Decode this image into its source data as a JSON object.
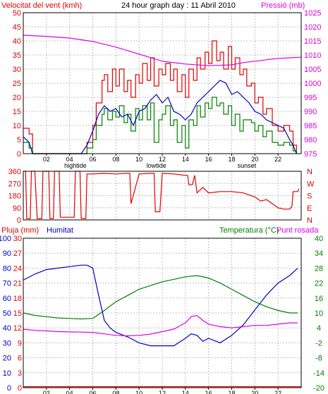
{
  "colors": {
    "red": "#e00000",
    "green": "#008000",
    "blue": "#0000c0",
    "magenta": "#e000e0",
    "grid": "#c0c0c0",
    "frame": "#000000"
  },
  "chart_data": [
    {
      "type": "line",
      "title": "24 hour graph day : 11 Abril 2010",
      "left_axis_label": "Velocitat del vent (kmh)",
      "right_axis_label": "Pressió (mb)",
      "x_ticks": [
        "02",
        "04",
        "06",
        "08",
        "10",
        "12",
        "14",
        "16",
        "18",
        "20",
        "22"
      ],
      "x_annotations": [
        {
          "label": "hightide",
          "hour": 4.5
        },
        {
          "label": "lowtide",
          "hour": 11.5
        },
        {
          "label": "sunset",
          "hour": 19.3
        }
      ],
      "left_ticks": [
        0,
        5,
        10,
        15,
        20,
        25,
        30,
        35,
        40,
        45,
        50
      ],
      "left_ylim": [
        0,
        50
      ],
      "right_ticks": [
        975,
        980,
        985,
        990,
        995,
        1000,
        1005,
        1010,
        1015,
        1020,
        1025
      ],
      "right_ylim": [
        975,
        1025
      ],
      "x_range": [
        0,
        24
      ],
      "grid": true,
      "series": [
        {
          "axis": "left",
          "color_key": "red",
          "hours": [
            0,
            0.5,
            0.8,
            1,
            2,
            3,
            4,
            5,
            5.5,
            6,
            6.3,
            6.8,
            7,
            7.3,
            7.7,
            8,
            8.3,
            8.7,
            9,
            9.3,
            9.7,
            10,
            10.3,
            10.7,
            11,
            11.3,
            11.7,
            12,
            12.3,
            12.7,
            13,
            13.3,
            13.7,
            14,
            14.3,
            14.7,
            15,
            15.3,
            15.7,
            16,
            16.3,
            16.7,
            17,
            17.3,
            17.7,
            18,
            18.3,
            18.7,
            19,
            19.3,
            19.7,
            20,
            20.3,
            20.7,
            21,
            21.5,
            22,
            22.5,
            23,
            23.3,
            23.6
          ],
          "values": [
            9,
            7,
            0,
            0,
            0,
            0,
            0,
            0,
            4,
            10,
            18,
            26,
            28,
            22,
            30,
            24,
            30,
            22,
            26,
            20,
            28,
            25,
            32,
            26,
            34,
            24,
            30,
            28,
            32,
            26,
            30,
            22,
            28,
            20,
            30,
            26,
            34,
            30,
            36,
            32,
            40,
            33,
            36,
            30,
            38,
            30,
            34,
            28,
            30,
            24,
            25,
            18,
            20,
            14,
            16,
            10,
            8,
            10,
            8,
            3,
            0
          ]
        },
        {
          "axis": "left",
          "color_key": "green",
          "hours": [
            0,
            0.5,
            0.8,
            1,
            2,
            3,
            4,
            5,
            5.5,
            6,
            6.3,
            6.8,
            7,
            7.3,
            7.7,
            8,
            8.3,
            8.7,
            9,
            9.3,
            9.7,
            10,
            10.3,
            10.7,
            11,
            11.3,
            11.7,
            12,
            12.3,
            12.7,
            13,
            13.3,
            13.7,
            14,
            14.3,
            14.7,
            15,
            15.3,
            15.7,
            16,
            16.3,
            16.7,
            17,
            17.3,
            17.7,
            18,
            18.3,
            18.7,
            19,
            19.3,
            19.7,
            20,
            20.3,
            20.7,
            21,
            21.5,
            22,
            22.5,
            23,
            23.3,
            23.6
          ],
          "values": [
            4,
            2,
            0,
            0,
            0,
            0,
            0,
            0,
            2,
            5,
            10,
            14,
            16,
            12,
            15,
            13,
            17,
            11,
            14,
            8,
            16,
            12,
            17,
            12,
            18,
            4,
            12,
            14,
            17,
            10,
            12,
            4,
            10,
            2,
            12,
            10,
            17,
            13,
            18,
            16,
            20,
            17,
            18,
            14,
            17,
            10,
            14,
            8,
            12,
            12,
            11,
            8,
            10,
            6,
            8,
            4,
            3,
            4,
            3,
            1,
            0
          ]
        },
        {
          "axis": "left",
          "color_key": "blue",
          "hours": [
            0,
            0.5,
            0.8,
            1,
            2,
            3,
            4,
            5,
            5.5,
            6,
            6.5,
            7,
            7.5,
            8,
            8.5,
            9,
            9.5,
            10,
            10.5,
            11,
            11.5,
            12,
            12.5,
            13,
            13.5,
            14,
            14.5,
            15,
            15.5,
            16,
            16.5,
            17,
            17.5,
            18,
            18.5,
            19,
            19.5,
            20,
            20.5,
            21,
            21.5,
            22,
            22.5,
            23,
            23.3,
            23.6
          ],
          "values": [
            6,
            4,
            0,
            0,
            0,
            0,
            0,
            0,
            3,
            8,
            14,
            17,
            15,
            16,
            13,
            14,
            10,
            15,
            16,
            19,
            21,
            18,
            20,
            15,
            14,
            12,
            14,
            18,
            20,
            22,
            24,
            26,
            25,
            21,
            22,
            20,
            18,
            15,
            14,
            12,
            11,
            10,
            9,
            5,
            3,
            0
          ]
        },
        {
          "axis": "right",
          "color_key": "magenta",
          "hours": [
            0,
            2,
            4,
            6,
            8,
            10,
            12,
            14,
            16,
            18,
            19,
            20,
            21,
            22,
            23,
            24
          ],
          "values": [
            1017,
            1016.6,
            1016,
            1014.8,
            1012.8,
            1010.3,
            1007.8,
            1006.8,
            1006.2,
            1006.5,
            1007.3,
            1007.8,
            1008.3,
            1008.8,
            1009,
            1009.2
          ]
        }
      ]
    },
    {
      "type": "line",
      "title": "",
      "ylabel_ticks": [
        0,
        90,
        180,
        270,
        360
      ],
      "right_labels": [
        "N",
        "W",
        "S",
        "E",
        "N"
      ],
      "ylim": [
        0,
        360
      ],
      "x_range": [
        0,
        24
      ],
      "grid": true,
      "series": [
        {
          "color_key": "red",
          "hours": [
            0,
            0.2,
            0.3,
            0.6,
            0.7,
            1,
            1.2,
            1.6,
            1.7,
            2.2,
            2.3,
            2.6,
            2.7,
            3.1,
            3.2,
            4.4,
            4.5,
            4.9,
            5,
            5.4,
            5.5,
            6,
            7,
            8,
            9,
            9.2,
            9.3,
            10,
            11,
            11.3,
            11.4,
            11.8,
            12,
            13,
            14,
            14.2,
            14.3,
            14.6,
            14.8,
            15,
            15.5,
            16,
            17,
            18,
            19,
            20,
            20.5,
            21,
            21.5,
            22,
            22.5,
            23,
            23.2,
            23.3,
            23.7,
            23.8
          ],
          "values": [
            360,
            360,
            10,
            10,
            360,
            360,
            10,
            10,
            360,
            360,
            10,
            10,
            360,
            360,
            20,
            20,
            360,
            360,
            10,
            10,
            340,
            340,
            345,
            340,
            345,
            345,
            120,
            340,
            345,
            345,
            60,
            60,
            345,
            340,
            330,
            330,
            260,
            260,
            330,
            200,
            240,
            200,
            210,
            210,
            200,
            170,
            140,
            150,
            120,
            90,
            80,
            80,
            100,
            210,
            210,
            230
          ]
        }
      ]
    },
    {
      "type": "line",
      "title": "",
      "left_axis_label_1": "Pluja (mm)",
      "left_axis_label_2": "Humitat",
      "right_axis_label_1": "Temperatura (°C)",
      "right_axis_label_2": "Punt rosada",
      "rain_ticks": [
        0,
        3,
        6,
        9,
        12,
        15,
        18,
        21,
        24,
        27,
        30
      ],
      "humidity_ticks": [
        0,
        10,
        20,
        30,
        40,
        50,
        60,
        70,
        80,
        90,
        100
      ],
      "temp_ticks": [
        -20,
        -14,
        -8,
        -2,
        4,
        10,
        16,
        22,
        28,
        34,
        40
      ],
      "rain_ylim": [
        0,
        30
      ],
      "humidity_ylim": [
        0,
        100
      ],
      "temp_ylim": [
        -20,
        40
      ],
      "x_ticks": [
        "02",
        "04",
        "06",
        "08",
        "10",
        "12",
        "14",
        "16",
        "18",
        "20",
        "22"
      ],
      "x_annotations": [
        {
          "label": "hightide",
          "hour": 4.5
        },
        {
          "label": "lowtide",
          "hour": 11.5
        },
        {
          "label": "sunset",
          "hour": 19.3
        }
      ],
      "x_range": [
        0,
        24
      ],
      "grid": true,
      "series": [
        {
          "axis": "humidity",
          "color_key": "blue",
          "hours": [
            0,
            1,
            2,
            3,
            4,
            5,
            5.5,
            6,
            6.5,
            7,
            7.5,
            8,
            9,
            10,
            11,
            12,
            13,
            14,
            14.5,
            15,
            15.5,
            16,
            17,
            18,
            19,
            20,
            21,
            22,
            23,
            23.7
          ],
          "values": [
            72,
            76,
            79,
            80,
            81,
            82,
            82,
            80,
            62,
            45,
            40,
            37,
            34,
            30,
            28,
            28,
            28,
            33,
            36,
            35,
            31,
            33,
            30,
            35,
            42,
            52,
            62,
            70,
            75,
            80
          ]
        },
        {
          "axis": "temp",
          "color_key": "green",
          "hours": [
            0,
            1,
            2,
            3,
            4,
            5,
            6,
            7,
            8,
            9,
            10,
            11,
            12,
            13,
            14,
            15,
            16,
            17,
            18,
            19,
            20,
            21,
            22,
            23,
            23.7
          ],
          "values": [
            10,
            9,
            8.5,
            8,
            7.8,
            7.6,
            7.8,
            11,
            14.5,
            17,
            19.5,
            21,
            22.5,
            23.5,
            24.5,
            25,
            24,
            22,
            19.5,
            17,
            14.5,
            12.5,
            11,
            10,
            10
          ]
        },
        {
          "axis": "temp",
          "color_key": "magenta",
          "hours": [
            0,
            1,
            2,
            3,
            4,
            5,
            6,
            7,
            8,
            9,
            10,
            11,
            12,
            13,
            14,
            14.5,
            15,
            15.5,
            16,
            17,
            18,
            19,
            20,
            21,
            22,
            23,
            23.7
          ],
          "values": [
            3.5,
            3,
            2.8,
            2.5,
            2.4,
            2.3,
            2.2,
            1.6,
            1,
            0.8,
            1,
            1.5,
            2.5,
            3.5,
            6,
            8.5,
            9,
            7,
            5.5,
            4.5,
            4,
            4.5,
            5,
            5,
            5.5,
            6,
            6
          ]
        },
        {
          "axis": "rain",
          "color_key": "red",
          "hours": [
            0,
            24
          ],
          "values": [
            0.2,
            0.2
          ]
        }
      ]
    }
  ]
}
